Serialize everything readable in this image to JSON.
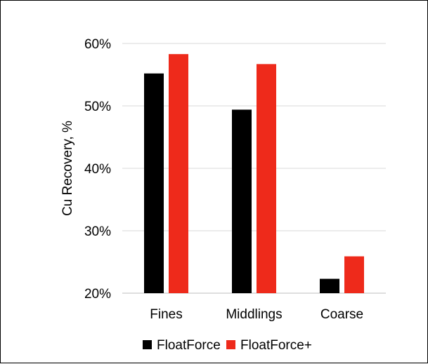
{
  "chart_data": {
    "type": "bar",
    "title": "",
    "xlabel": "",
    "ylabel": "Cu Recovery, %",
    "categories": [
      "Fines",
      "Middlings",
      "Coarse"
    ],
    "series": [
      {
        "name": "FloatForce",
        "color": "#000000",
        "values": [
          55.2,
          49.4,
          22.3
        ]
      },
      {
        "name": "FloatForce+",
        "color": "#ee2a1b",
        "values": [
          58.3,
          56.7,
          25.9
        ]
      }
    ],
    "ylim": [
      20,
      60
    ],
    "yticks": [
      20,
      30,
      40,
      50,
      60
    ],
    "ytick_labels": [
      "20%",
      "30%",
      "40%",
      "50%",
      "60%"
    ],
    "grid": true,
    "legend": "bottom"
  }
}
